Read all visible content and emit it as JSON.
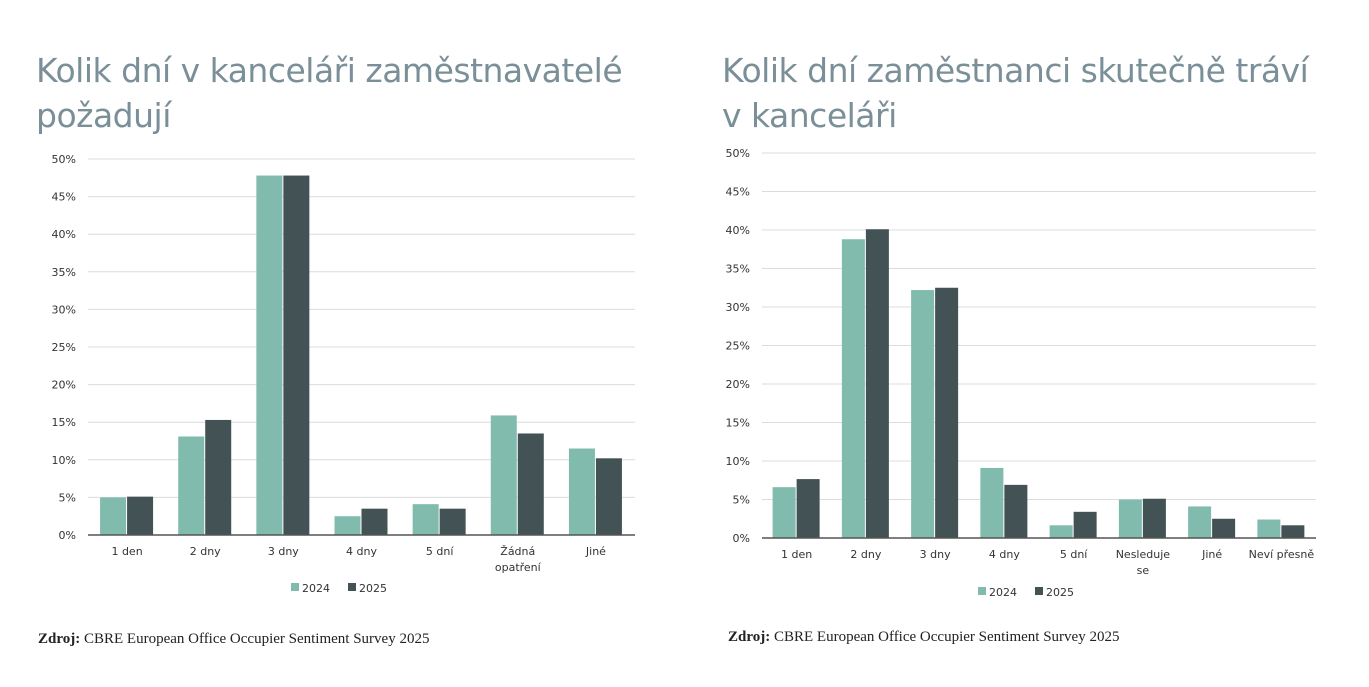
{
  "colors": {
    "s2024": "#80bbad",
    "s2025": "#435255",
    "title": "#7a8f98"
  },
  "chart_data": [
    {
      "type": "bar",
      "title": "Kolik dní v kanceláři zaměstnavatelé požadují",
      "categories": [
        "1 den",
        "2 dny",
        "3 dny",
        "4 dny",
        "5 dní",
        "Žádná opatření",
        "Jiné"
      ],
      "category_lines": [
        [
          "1 den"
        ],
        [
          "2 dny"
        ],
        [
          "3 dny"
        ],
        [
          "4 dny"
        ],
        [
          "5 dní"
        ],
        [
          "Žádná",
          "opatření"
        ],
        [
          "Jiné"
        ]
      ],
      "series": [
        {
          "name": "2024",
          "values": [
            5.0,
            13.1,
            47.8,
            2.5,
            4.1,
            15.9,
            11.5
          ]
        },
        {
          "name": "2025",
          "values": [
            5.1,
            15.3,
            47.8,
            3.5,
            3.5,
            13.5,
            10.2
          ]
        }
      ],
      "yticks": [
        "0%",
        "5%",
        "10%",
        "15%",
        "20%",
        "25%",
        "30%",
        "35%",
        "40%",
        "45%",
        "50%"
      ],
      "ylim": [
        0,
        50
      ],
      "grid": true,
      "legend": "bottom"
    },
    {
      "type": "bar",
      "title": "Kolik dní zaměstnanci skutečně tráví v kanceláři",
      "categories": [
        "1 den",
        "2 dny",
        "3 dny",
        "4 dny",
        "5 dní",
        "Nesleduje se",
        "Jiné",
        "Neví přesně"
      ],
      "category_lines": [
        [
          "1 den"
        ],
        [
          "2 dny"
        ],
        [
          "3 dny"
        ],
        [
          "4 dny"
        ],
        [
          "5 dní"
        ],
        [
          "Nesleduje",
          "se"
        ],
        [
          "Jiné"
        ],
        [
          "Neví přesně"
        ]
      ],
      "series": [
        {
          "name": "2024",
          "values": [
            6.6,
            38.8,
            32.2,
            9.1,
            1.65,
            5.0,
            4.1,
            2.4
          ]
        },
        {
          "name": "2025",
          "values": [
            7.65,
            40.1,
            32.5,
            6.9,
            3.4,
            5.1,
            2.5,
            1.65
          ]
        }
      ],
      "yticks": [
        "0%",
        "5%",
        "10%",
        "15%",
        "20%",
        "25%",
        "30%",
        "35%",
        "40%",
        "45%",
        "50%"
      ],
      "ylim": [
        0,
        50
      ],
      "grid": true,
      "legend": "bottom"
    }
  ],
  "titles": {
    "left": [
      "Kolik dní v kanceláři zaměstnavatelé",
      "požadují"
    ],
    "right": [
      "Kolik dní zaměstnanci skutečně tráví",
      "v kanceláři"
    ]
  },
  "source": {
    "label": "Zdroj:",
    "text": "CBRE European Office Occupier Sentiment Survey 2025"
  }
}
